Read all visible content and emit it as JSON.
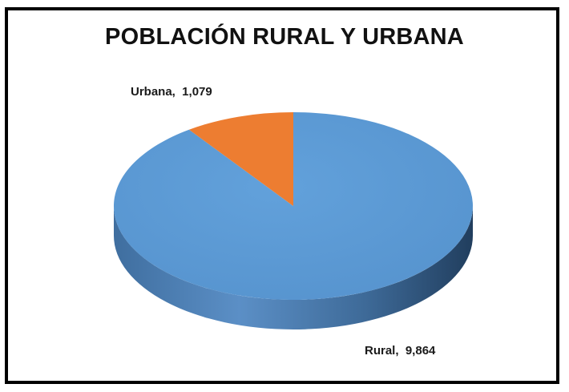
{
  "chart_data": {
    "type": "pie",
    "title": "POBLACIÓN RURAL Y URBANA",
    "style": "3d",
    "categories": [
      "Rural",
      "Urbana"
    ],
    "values": [
      9864,
      1079
    ],
    "data_labels": [
      "Rural,  9,864",
      "Urbana,  1,079"
    ],
    "colors": {
      "Rural": "#5B9BD5",
      "Urbana": "#ED7D31"
    },
    "legend": "none"
  }
}
